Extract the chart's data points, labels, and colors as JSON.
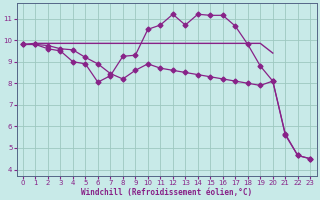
{
  "bg_color": "#c8eae8",
  "grid_color": "#9dc8c0",
  "line_color": "#882288",
  "spine_color": "#556688",
  "xlabel": "Windchill (Refroidissement éolien,°C)",
  "xlim": [
    -0.5,
    23.5
  ],
  "ylim": [
    3.7,
    11.7
  ],
  "yticks": [
    4,
    5,
    6,
    7,
    8,
    9,
    10,
    11
  ],
  "xticks": [
    0,
    1,
    2,
    3,
    4,
    5,
    6,
    7,
    8,
    9,
    10,
    11,
    12,
    13,
    14,
    15,
    16,
    17,
    18,
    19,
    20,
    21,
    22,
    23
  ],
  "curve_flat_x": [
    0,
    1,
    2,
    3,
    4,
    5,
    6,
    7,
    8,
    9,
    10,
    11,
    12,
    13,
    14,
    15,
    16,
    17,
    18,
    19,
    20
  ],
  "curve_flat_y": [
    9.8,
    9.85,
    9.85,
    9.85,
    9.85,
    9.85,
    9.85,
    9.85,
    9.85,
    9.85,
    9.85,
    9.85,
    9.85,
    9.85,
    9.85,
    9.85,
    9.85,
    9.85,
    9.85,
    9.85,
    9.4
  ],
  "curve_spiky_x": [
    0,
    1,
    2,
    3,
    4,
    5,
    6,
    7,
    8,
    9,
    10,
    11,
    12,
    13,
    14,
    15,
    16,
    17,
    18,
    19,
    20,
    21,
    22,
    23
  ],
  "curve_spiky_y": [
    9.8,
    9.8,
    9.6,
    9.5,
    9.0,
    8.9,
    8.05,
    8.35,
    9.25,
    9.3,
    10.5,
    10.7,
    11.2,
    10.7,
    11.2,
    11.15,
    11.15,
    10.65,
    9.8,
    8.8,
    8.1,
    5.6,
    4.65,
    4.5
  ],
  "curve_diag_x": [
    0,
    1,
    2,
    3,
    4,
    5,
    6,
    7,
    8,
    9,
    10,
    11,
    12,
    13,
    14,
    15,
    16,
    17,
    18,
    19,
    20,
    21,
    22,
    23
  ],
  "curve_diag_y": [
    9.8,
    9.8,
    9.75,
    9.6,
    9.55,
    9.2,
    8.9,
    8.45,
    8.2,
    8.6,
    8.9,
    8.7,
    8.6,
    8.5,
    8.4,
    8.3,
    8.2,
    8.1,
    8.0,
    7.9,
    8.1,
    5.65,
    4.65,
    4.5
  ]
}
